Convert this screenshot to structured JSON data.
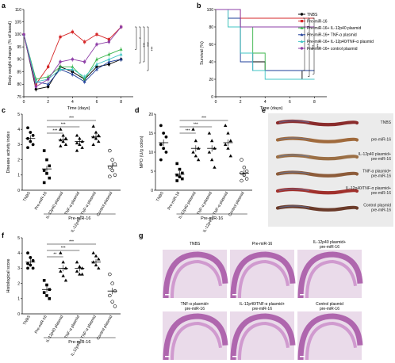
{
  "panels": {
    "a": "a",
    "b": "b",
    "c": "c",
    "d": "d",
    "e": "e",
    "f": "f",
    "g": "g"
  },
  "colors": {
    "tnbs": "#000000",
    "pre": "#d62728",
    "il12": "#39b54a",
    "tnf": "#1f3f99",
    "il12tnf": "#40c4c4",
    "ctrl": "#8e3fa7"
  },
  "chart_data": [
    {
      "id": "a",
      "type": "line",
      "xlabel": "Time (days)",
      "ylabel": "Body weight change (% of basal)",
      "xlim": [
        0,
        9
      ],
      "ylim": [
        75,
        110
      ],
      "xticks": [
        0,
        2,
        4,
        6,
        8
      ],
      "yticks": [
        75,
        80,
        85,
        90,
        95,
        100,
        105,
        110
      ],
      "x": [
        0,
        1,
        2,
        3,
        4,
        5,
        6,
        7,
        8
      ],
      "series": [
        {
          "name": "TNBS",
          "values": [
            100,
            78,
            79,
            87,
            85,
            82,
            87,
            88,
            90
          ]
        },
        {
          "name": "Pre-miR-16",
          "values": [
            100,
            80,
            87,
            99,
            101,
            97,
            100,
            98,
            103
          ]
        },
        {
          "name": "Pre-miR-16+ IL-12p40 plasmid",
          "values": [
            100,
            82,
            83,
            87,
            87,
            82,
            90,
            92,
            94
          ]
        },
        {
          "name": "Pre-miR-16+ TNF-α plasmid",
          "values": [
            100,
            81,
            80,
            86,
            84,
            81,
            86,
            89,
            90
          ]
        },
        {
          "name": "Pre-miR-16+ IL-12p40/TNF-α plasmid",
          "values": [
            100,
            81,
            82,
            86,
            86,
            83,
            88,
            90,
            92
          ]
        },
        {
          "name": "Pre-miR-16+ control plasmid",
          "values": [
            100,
            79,
            82,
            89,
            90,
            89,
            96,
            97,
            103
          ]
        }
      ],
      "significance": [
        "*",
        "***",
        "***",
        "***"
      ]
    },
    {
      "id": "b",
      "type": "line",
      "xlabel": "Time (days)",
      "ylabel": "Survival (%)",
      "xlim": [
        0,
        9
      ],
      "ylim": [
        0,
        100
      ],
      "xticks": [
        0,
        2,
        4,
        6,
        8
      ],
      "yticks": [
        0,
        20,
        40,
        60,
        80,
        100
      ],
      "series": [
        {
          "name": "TNBS",
          "steps": [
            [
              0,
              100
            ],
            [
              1,
              100
            ],
            [
              1,
              90
            ],
            [
              2,
              90
            ],
            [
              2,
              50
            ],
            [
              3,
              50
            ],
            [
              3,
              40
            ],
            [
              4,
              40
            ],
            [
              4,
              30
            ],
            [
              7,
              30
            ],
            [
              7,
              20
            ],
            [
              8,
              20
            ]
          ]
        },
        {
          "name": "Pre-miR-16",
          "steps": [
            [
              0,
              100
            ],
            [
              2,
              100
            ],
            [
              2,
              90
            ],
            [
              8,
              90
            ]
          ]
        },
        {
          "name": "Pre-miR-16+ IL-12p40 plasmid",
          "steps": [
            [
              0,
              100
            ],
            [
              1,
              100
            ],
            [
              1,
              80
            ],
            [
              3,
              80
            ],
            [
              3,
              50
            ],
            [
              4,
              50
            ],
            [
              4,
              30
            ],
            [
              8,
              30
            ]
          ]
        },
        {
          "name": "Pre-miR-16+ TNF-α plasmid",
          "steps": [
            [
              0,
              100
            ],
            [
              1,
              100
            ],
            [
              1,
              90
            ],
            [
              2,
              90
            ],
            [
              2,
              40
            ],
            [
              3,
              40
            ],
            [
              3,
              30
            ],
            [
              5,
              30
            ],
            [
              5,
              30
            ],
            [
              8,
              30
            ]
          ]
        },
        {
          "name": "Pre-miR-16+ IL-12p40/TNF-α plasmid",
          "steps": [
            [
              0,
              100
            ],
            [
              1,
              100
            ],
            [
              1,
              80
            ],
            [
              2,
              80
            ],
            [
              2,
              50
            ],
            [
              3,
              50
            ],
            [
              3,
              30
            ],
            [
              4,
              30
            ],
            [
              4,
              20
            ],
            [
              8,
              20
            ]
          ]
        },
        {
          "name": "Pre-miR-16+ control plasmid",
          "steps": [
            [
              0,
              100
            ],
            [
              2,
              100
            ],
            [
              2,
              80
            ],
            [
              8,
              80
            ]
          ]
        }
      ],
      "significance": [
        "*",
        "***",
        "***"
      ]
    },
    {
      "id": "c",
      "type": "scatter",
      "ylabel": "Disease activity index",
      "ylim": [
        0,
        5
      ],
      "yticks": [
        0,
        1,
        2,
        3,
        4,
        5
      ],
      "categories": [
        "TNBS",
        "Pre-miR-16",
        "IL-12p40 plasmid",
        "TNF-α plasmid",
        "IL-12p40 + TNF-α plasmid",
        "Control plasmid"
      ],
      "group_label": "Pre-miR-16",
      "means": [
        3.4,
        1.4,
        3.3,
        3.2,
        3.5,
        1.6
      ],
      "points": [
        [
          4.1,
          3.8,
          3.6,
          3.4,
          3.2,
          3.0,
          2.8
        ],
        [
          2.6,
          2.0,
          1.6,
          1.3,
          1.1,
          0.8,
          0.5
        ],
        [
          4.0,
          3.6,
          3.4,
          3.3,
          3.2,
          3.0,
          2.9
        ],
        [
          3.6,
          3.4,
          3.2,
          3.1,
          3.0,
          2.8,
          2.6
        ],
        [
          4.2,
          3.8,
          3.6,
          3.5,
          3.4,
          3.2,
          3.0
        ],
        [
          2.6,
          2.0,
          1.7,
          1.5,
          1.3,
          1.0,
          0.9
        ]
      ],
      "significance": [
        "***",
        "***",
        "***"
      ]
    },
    {
      "id": "d",
      "type": "scatter",
      "ylabel": "MPO (U/g colon)",
      "ylim": [
        0,
        20
      ],
      "yticks": [
        0,
        5,
        10,
        15,
        20
      ],
      "categories": [
        "TNBS",
        "Pre-miR-16",
        "IL-12p40 plasmid",
        "TNF-α plasmid",
        "IL-12p40 + TNF-α plasmid",
        "Control plasmid"
      ],
      "group_label": "Pre-miR-16",
      "means": [
        12.5,
        4.2,
        11,
        11,
        12.5,
        4.5
      ],
      "points": [
        [
          17,
          15,
          14,
          12,
          11,
          10,
          8
        ],
        [
          7,
          5.5,
          4.5,
          4,
          3.5,
          3,
          2.5
        ],
        [
          16,
          13,
          11,
          10,
          9,
          8
        ],
        [
          15,
          13,
          11,
          10,
          8,
          6
        ],
        [
          17,
          15,
          13,
          12,
          11,
          9
        ],
        [
          8,
          6,
          5,
          4.5,
          4,
          3,
          2.5
        ]
      ],
      "significance": [
        "***",
        "***",
        "***"
      ]
    },
    {
      "id": "f",
      "type": "scatter",
      "ylabel": "Histological score",
      "ylim": [
        0,
        5
      ],
      "yticks": [
        0,
        1,
        2,
        3,
        4,
        5
      ],
      "categories": [
        "TNBS",
        "Pre-miR-16",
        "IL-12p40 plasmid",
        "TNF-α plasmid",
        "IL-12p40 + TNF-α plasmid",
        "Control plasmid"
      ],
      "group_label": "Pre-miR-16",
      "means": [
        3.4,
        1.6,
        3.0,
        3.0,
        3.4,
        1.5
      ],
      "points": [
        [
          4.0,
          3.7,
          3.5,
          3.3,
          3.2,
          3.0,
          3.0
        ],
        [
          2.2,
          1.9,
          1.6,
          1.4,
          1.2,
          1.0
        ],
        [
          4.0,
          3.4,
          3.0,
          2.8,
          2.5,
          2.2
        ],
        [
          3.4,
          3.1,
          3.0,
          2.8,
          2.6,
          2.6
        ],
        [
          4.0,
          3.8,
          3.6,
          3.4,
          3.2,
          3.0
        ],
        [
          2.6,
          2.0,
          1.5,
          1.2,
          0.8,
          0.5
        ]
      ],
      "significance": [
        "**",
        "***",
        "***"
      ]
    }
  ],
  "legend_b": [
    "TNBS",
    "Pre-miR-16",
    "Pre-miR-16+ IL-12p40 plasmid",
    "Pre-miR-16+ TNF-α plasmid",
    "Pre-miR-16+ IL-12p40/TNF-α plasmid",
    "Pre-miR-16+ control plasmid"
  ],
  "panel_e_labels": [
    "TNBS",
    "pre-miR-16",
    "IL-12p40 plasmid+ pre-miR-16",
    "TNF-α plasmid+ pre-miR-16",
    "IL-12p40/TNF-α plasmid+ pre-miR-16",
    "Control plasmid pre-miR-16"
  ],
  "panel_g_labels": [
    "TNBS",
    "Pre-miR-16",
    "IL-12p40 plasmid+ pre-miR-16",
    "TNF-α plasmid+ pre-miR-16",
    "IL-12p40/TNF-α plasmid+ pre-miR-16",
    "Control plasmid pre-miR-16"
  ]
}
